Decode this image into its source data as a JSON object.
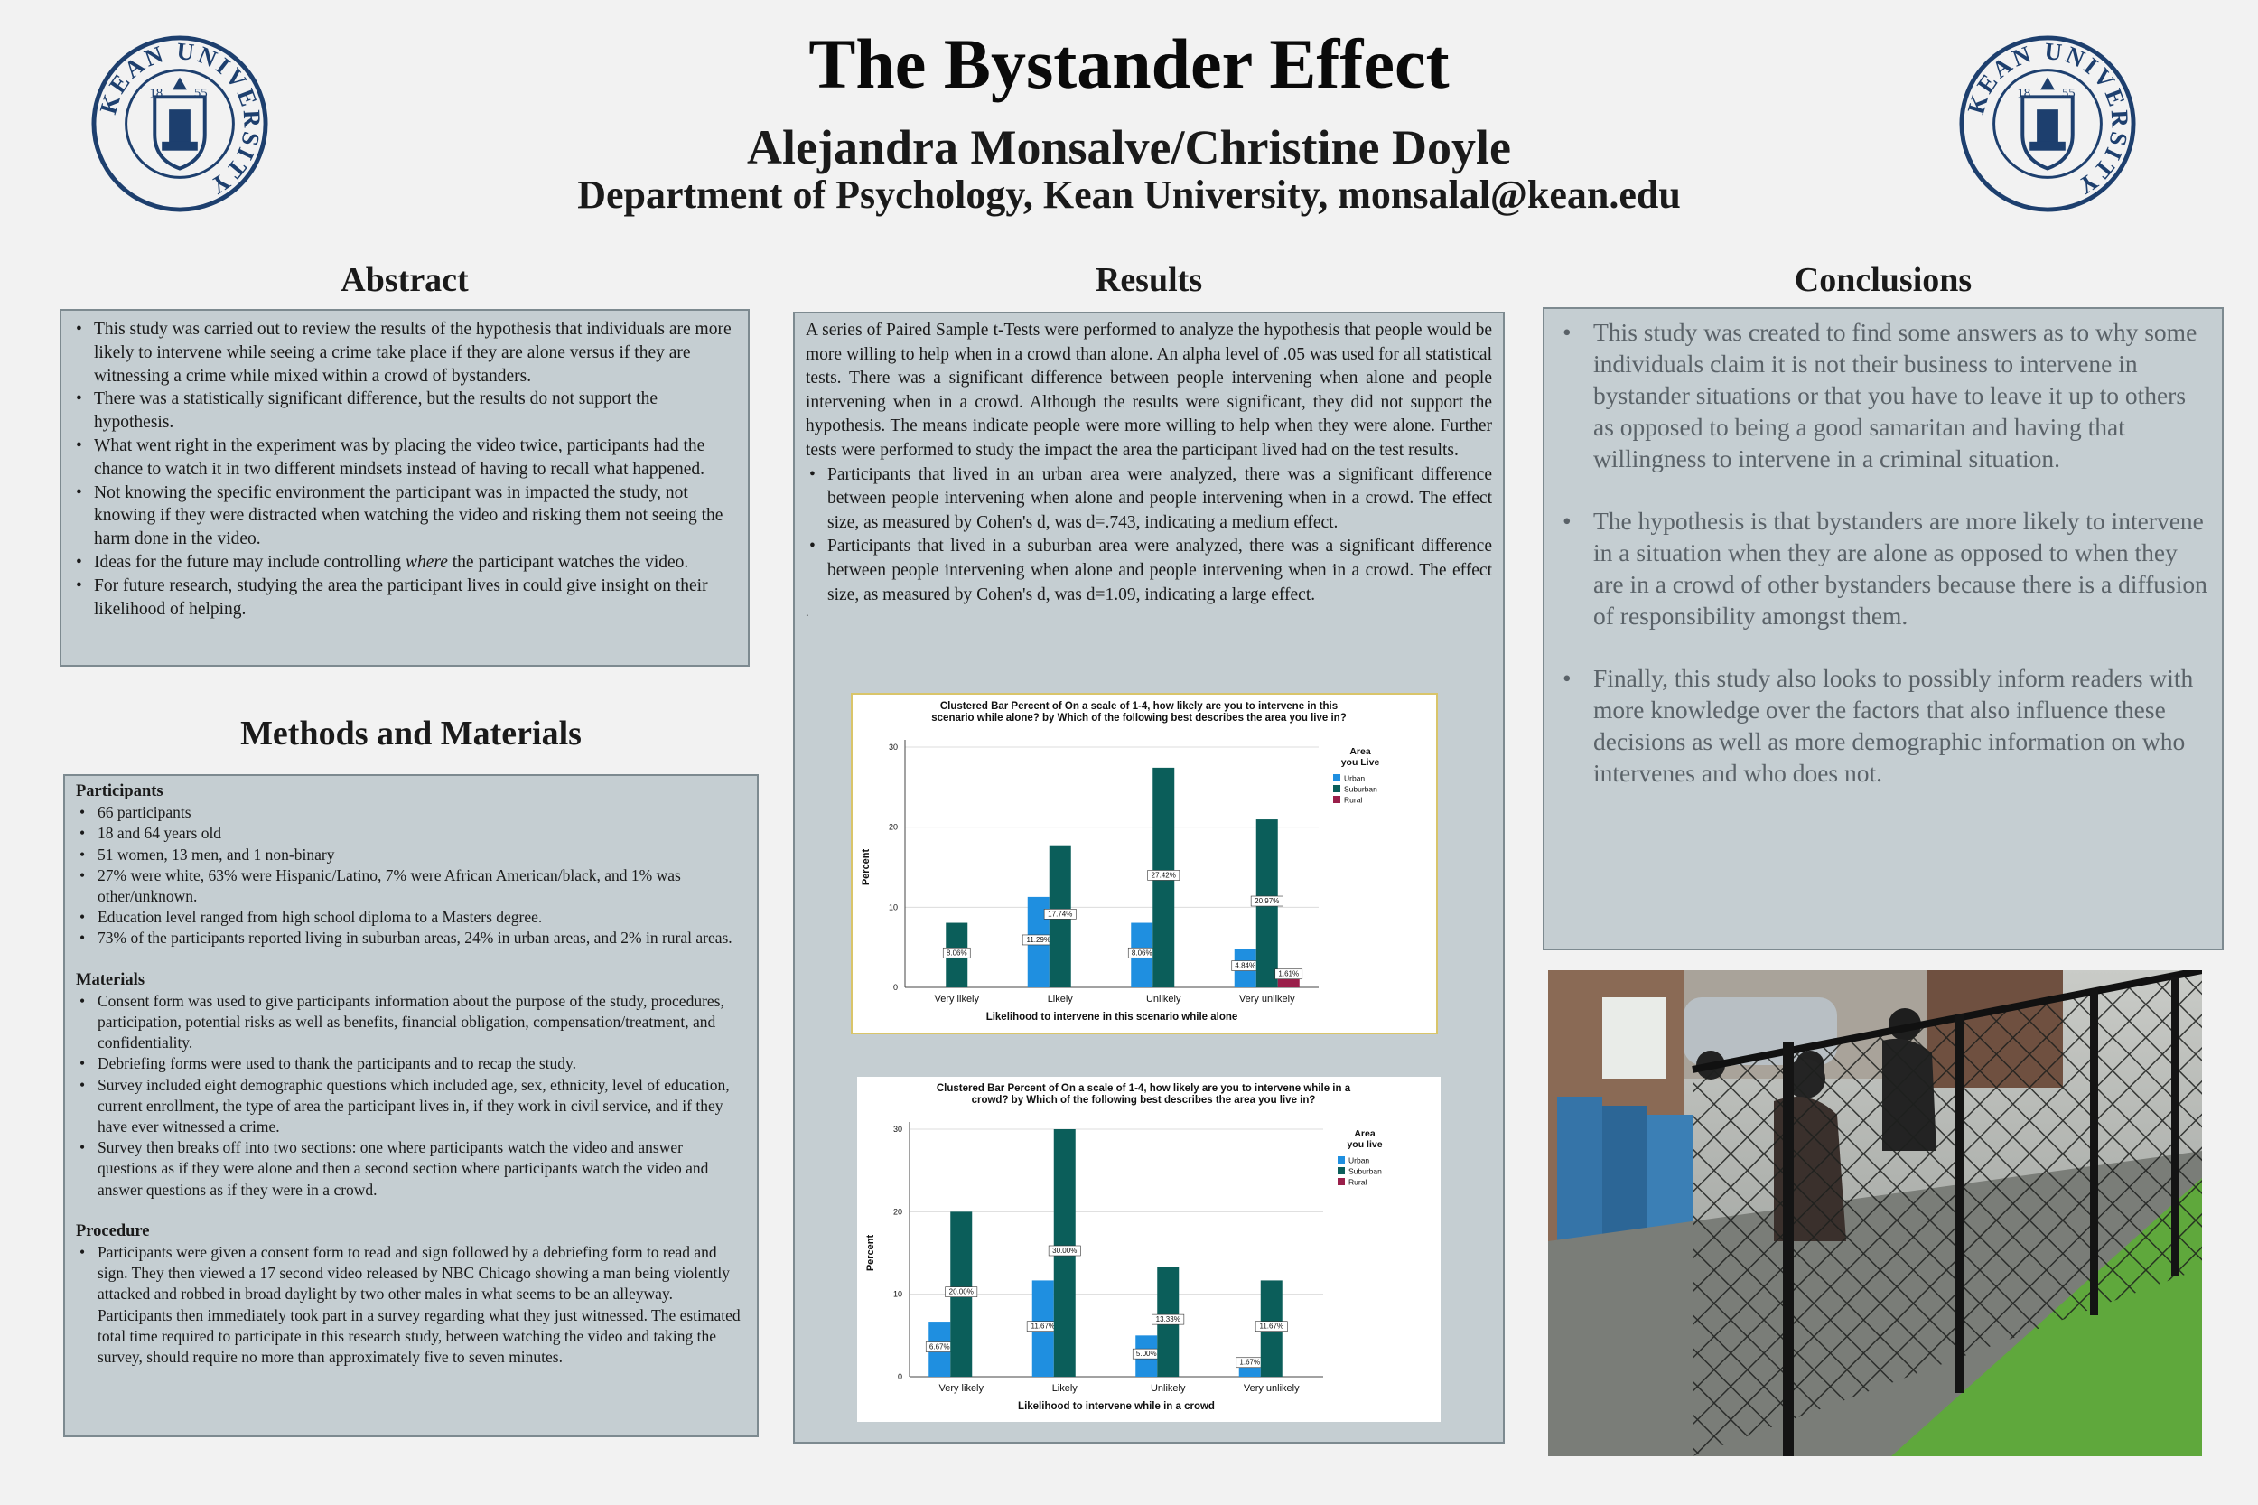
{
  "header": {
    "title": "The Bystander Effect",
    "authors": "Alejandra Monsalve/Christine Doyle",
    "department": "Department of Psychology, Kean University, monsalal@kean.edu",
    "logo_text": "KEAN UNIVERSITY",
    "logo_year_left": "18",
    "logo_year_right": "55"
  },
  "abstract": {
    "heading": "Abstract",
    "items": [
      "This study was carried out to review the results of the hypothesis that individuals are more likely to intervene while seeing a crime take place if they are alone versus if they are witnessing a crime while mixed within a crowd of bystanders.",
      " There was a statistically significant difference, but the results do not support the hypothesis.",
      "What went right in the experiment was by placing the video twice, participants had the chance to watch it in two different mindsets instead of having to recall what happened.",
      "Not knowing the specific environment the participant was in impacted the study, not knowing if they were distracted when watching the video and risking them not seeing the harm done in the video.",
      "For future research, studying the area the participant lives in could give insight on their likelihood of helping."
    ],
    "future_item": {
      "before": "Ideas for the future may include controlling ",
      "emph": "where",
      "after": " the participant watches the video."
    }
  },
  "methods": {
    "heading": "Methods and Materials",
    "participants_heading": "Participants",
    "participants": [
      "66 participants",
      "18 and 64 years old",
      "51 women, 13 men, and 1 non-binary",
      "27% were white, 63% were Hispanic/Latino,  7% were African American/black, and 1% was other/unknown.",
      "Education level ranged from high school diploma to a Masters degree.",
      "73% of the participants reported living in suburban areas, 24% in urban areas, and 2% in rural areas."
    ],
    "materials_heading": "Materials",
    "materials": [
      "Consent form was used to give participants information about the purpose of the study, procedures, participation, potential risks as well as benefits, financial obligation, compensation/treatment, and confidentiality.",
      "Debriefing forms were used to thank the participants and to recap the study.",
      "Survey included eight demographic questions which included age, sex, ethnicity, level of education, current enrollment, the type of area the participant lives in, if they work in civil service, and if they have ever witnessed a crime.",
      "Survey then breaks off into two sections: one where participants watch the video and answer questions as if they were alone and then a second section where participants watch the video and answer questions as if they were in a crowd."
    ],
    "procedure_heading": "Procedure",
    "procedure": [
      "Participants were given a consent form to read and sign followed by a debriefing form to read and sign. They then viewed a 17 second video released by NBC Chicago showing a man being violently attacked and robbed in broad daylight by two other males in what seems to be an alleyway. Participants then immediately took part in a survey regarding what they just witnessed. The estimated total time required to participate in this research study, between watching the video and taking the survey, should require no more than approximately five to seven minutes."
    ]
  },
  "results": {
    "heading": "Results",
    "intro": "A series of Paired Sample t-Tests were performed to analyze the hypothesis that people would be more willing to help when in a crowd than alone. An alpha level of .05 was used for all statistical tests. There was a significant difference between people intervening when alone and people intervening when in a crowd. Although the results were significant, they did not support the hypothesis. The means indicate people were more willing to help when they were alone. Further tests were performed to study the impact the area the participant lived had on the test results.",
    "items": [
      "Participants that lived in an urban area were analyzed, there was a significant difference between people intervening when alone and people intervening when in a crowd. The effect size, as measured by Cohen's d, was d=.743, indicating a medium effect.",
      "Participants that lived in a suburban area were analyzed, there was a significant difference between people intervening when alone and people intervening when in a crowd. The effect size, as measured by Cohen's d, was d=1.09, indicating a large effect."
    ],
    "stray_mark": "."
  },
  "conclusions": {
    "heading": "Conclusions",
    "items": [
      "This study was created to find some answers as to why some individuals claim it is not their business to intervene in bystander situations or that you have to leave it up to others as opposed to being a good samaritan and having that willingness to intervene in a criminal situation.",
      "The hypothesis is that bystanders are more likely to intervene in a situation when they are alone as opposed to when they are in a crowd of other bystanders because there is a diffusion of responsibility amongst them.",
      "Finally, this study also looks to possibly inform readers with more knowledge over the factors that also influence these decisions as well as more demographic information on who intervenes and who does not."
    ]
  },
  "chart_data": [
    {
      "type": "bar",
      "title": "Clustered Bar Percent of On a scale of 1-4, how likely are you to intervene in this scenario while alone? by Which of the following best describes the area you live in?",
      "xlabel": "Likelihood to intervene in this scenario while alone",
      "ylabel": "Percent",
      "legend_title": "Area you Live",
      "legend_position": "right",
      "categories": [
        "Very likely",
        "Likely",
        "Unlikely",
        "Very unlikely"
      ],
      "ylim": [
        0,
        30
      ],
      "yticks": [
        0,
        10,
        20,
        30
      ],
      "grid": true,
      "series": [
        {
          "name": "Urban",
          "color": "#1f8fe0",
          "values": [
            null,
            11.29,
            8.06,
            4.84
          ],
          "labels": [
            "",
            "11.29%",
            "8.06%",
            "4.84%"
          ]
        },
        {
          "name": "Suburban",
          "color": "#0b5e5a",
          "values": [
            8.06,
            17.74,
            27.42,
            20.97
          ],
          "labels": [
            "8.06%",
            "17.74%",
            "27.42%",
            "20.97%"
          ]
        },
        {
          "name": "Rural",
          "color": "#9a1f4a",
          "values": [
            null,
            null,
            null,
            1.61
          ],
          "labels": [
            "",
            "",
            "",
            "1.61%"
          ]
        }
      ]
    },
    {
      "type": "bar",
      "title": "Clustered Bar Percent of On a scale of 1-4, how likely are you to intervene while in a crowd? by Which of the following best describes the area you live in?",
      "xlabel": "Likelihood to intervene while in a crowd",
      "ylabel": "Percent",
      "legend_title": "Area you live",
      "legend_position": "right",
      "categories": [
        "Very likely",
        "Likely",
        "Unlikely",
        "Very unlikely"
      ],
      "ylim": [
        0,
        30
      ],
      "yticks": [
        0,
        10,
        20,
        30
      ],
      "grid": true,
      "series": [
        {
          "name": "Urban",
          "color": "#1f8fe0",
          "values": [
            6.67,
            11.67,
            5.0,
            1.67
          ],
          "labels": [
            "6.67%",
            "11.67%",
            "5.00%",
            "1.67%"
          ]
        },
        {
          "name": "Suburban",
          "color": "#0b5e5a",
          "values": [
            20.0,
            30.0,
            13.33,
            11.67
          ],
          "labels": [
            "20.00%",
            "30.00%",
            "13.33%",
            "11.67%"
          ]
        },
        {
          "name": "Rural",
          "color": "#9a1f4a",
          "values": [
            null,
            null,
            null,
            null
          ],
          "labels": [
            "",
            "",
            "",
            ""
          ]
        }
      ]
    }
  ],
  "colors": {
    "panel": "#c5ced2",
    "logo_blue": "#1d3f6e",
    "urban": "#1f8fe0",
    "suburban": "#0b5e5a",
    "rural": "#9a1f4a"
  },
  "photo": {
    "description_icon": "security-camera-still-icon"
  }
}
